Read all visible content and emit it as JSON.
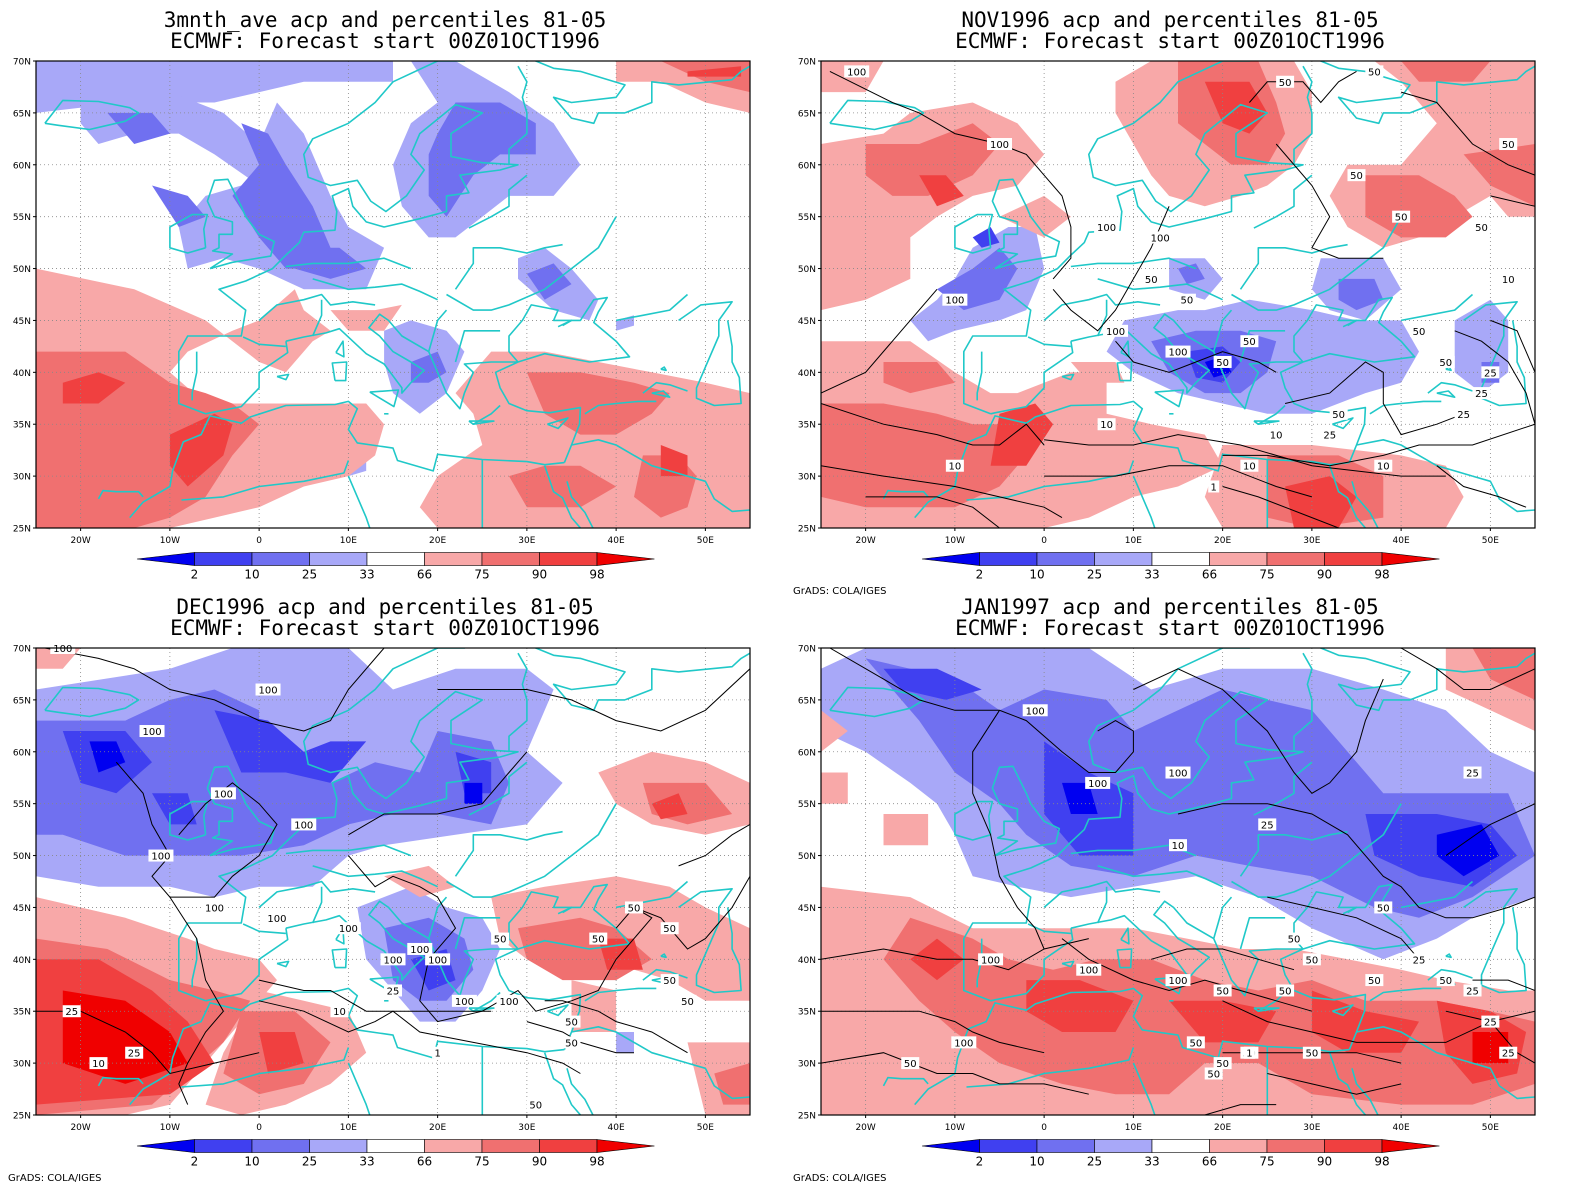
{
  "credit": "GrADS: COLA/IGES",
  "axes": {
    "lat_labels": [
      "70N",
      "65N",
      "60N",
      "55N",
      "50N",
      "45N",
      "40N",
      "35N",
      "30N",
      "25N"
    ],
    "lon_labels": [
      "20W",
      "10W",
      "0",
      "10E",
      "20E",
      "30E",
      "40E",
      "50E"
    ]
  },
  "colorbar": {
    "labels": [
      "2",
      "10",
      "25",
      "33",
      "66",
      "75",
      "90",
      "98"
    ],
    "colors": [
      "#0000f0",
      "#4040f0",
      "#7070f0",
      "#a8a8f8",
      "#ffffff",
      "#f8a8a8",
      "#f07070",
      "#f04040",
      "#f00000"
    ]
  },
  "colors": {
    "coast": "#20c8c8",
    "frame": "#000000",
    "contour": "#000000"
  },
  "panels": [
    {
      "id": "p1",
      "title1": "3mnth_ave acp and percentiles 81-05",
      "title2": "ECMWF: Forecast start 00Z01OCT1996",
      "credit": false,
      "contours": []
    },
    {
      "id": "p2",
      "title1": "NOV1996 acp and percentiles 81-05",
      "title2": "ECMWF: Forecast start 00Z01OCT1996",
      "credit": true,
      "contours": [
        "100",
        "100",
        "100",
        "100",
        "100",
        "100",
        "100",
        "50",
        "50",
        "50",
        "50",
        "50",
        "50",
        "50",
        "50",
        "50",
        "50",
        "50",
        "50",
        "50",
        "25",
        "25",
        "25",
        "25",
        "10",
        "10",
        "10",
        "10",
        "10",
        "10",
        "1"
      ]
    },
    {
      "id": "p3",
      "title1": "DEC1996 acp and percentiles 81-05",
      "title2": "ECMWF: Forecast start 00Z01OCT1996",
      "credit": true,
      "contours": [
        "100",
        "100",
        "100",
        "100",
        "100",
        "100",
        "100",
        "100",
        "100",
        "100",
        "100",
        "100",
        "100",
        "100",
        "50",
        "50",
        "50",
        "50",
        "50",
        "50",
        "50",
        "50",
        "25",
        "25",
        "25",
        "10",
        "10",
        "1",
        "50"
      ]
    },
    {
      "id": "p4",
      "title1": "JAN1997 acp and percentiles 81-05",
      "title2": "ECMWF: Forecast start 00Z01OCT1996",
      "credit": true,
      "contours": [
        "100",
        "100",
        "100",
        "100",
        "100",
        "100",
        "100",
        "50",
        "50",
        "50",
        "50",
        "50",
        "50",
        "50",
        "50",
        "50",
        "50",
        "50",
        "50",
        "50",
        "25",
        "25",
        "25",
        "25",
        "25",
        "25",
        "10",
        "1"
      ]
    }
  ]
}
